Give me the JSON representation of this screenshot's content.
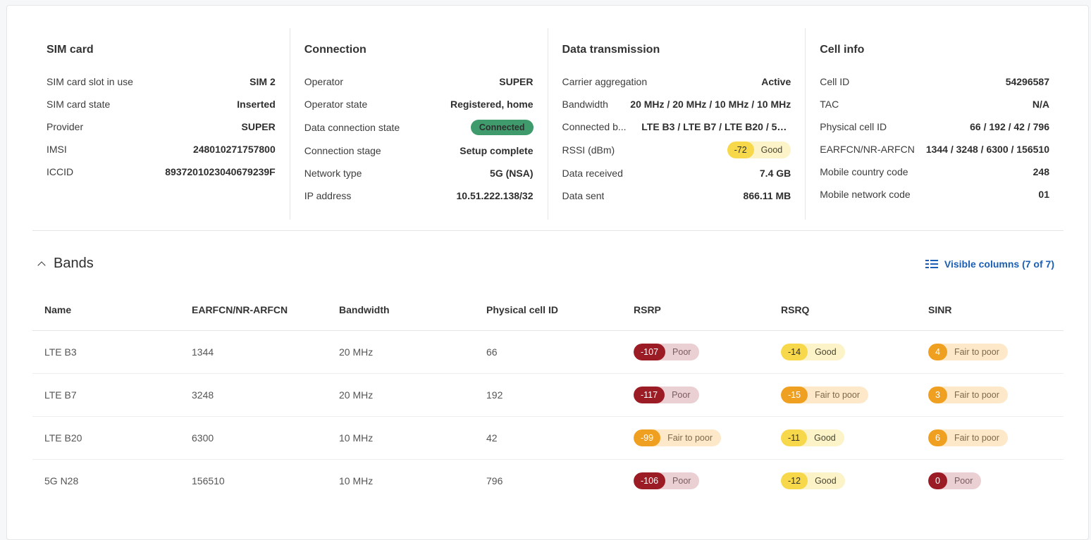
{
  "sim": {
    "title": "SIM card",
    "rows": [
      {
        "label": "SIM card slot in use",
        "value": "SIM 2"
      },
      {
        "label": "SIM card state",
        "value": "Inserted"
      },
      {
        "label": "Provider",
        "value": "SUPER"
      },
      {
        "label": "IMSI",
        "value": "248010271757800"
      },
      {
        "label": "ICCID",
        "value": "8937201023040679239F"
      }
    ]
  },
  "connection": {
    "title": "Connection",
    "rows": [
      {
        "label": "Operator",
        "value": "SUPER"
      },
      {
        "label": "Operator state",
        "value": "Registered, home"
      },
      {
        "label": "Data connection state",
        "value": "Connected"
      },
      {
        "label": "Connection stage",
        "value": "Setup complete"
      },
      {
        "label": "Network type",
        "value": "5G (NSA)"
      },
      {
        "label": "IP address",
        "value": "10.51.222.138/32"
      }
    ]
  },
  "data_tx": {
    "title": "Data transmission",
    "rows": [
      {
        "label": "Carrier aggregation",
        "value": "Active"
      },
      {
        "label": "Bandwidth",
        "value": "20 MHz / 20 MHz / 10 MHz / 10 MHz"
      },
      {
        "label": "Connected b...",
        "value": "LTE B3 / LTE B7 / LTE B20 / 5G..."
      },
      {
        "label": "RSSI (dBm)",
        "value": "-72",
        "quality": "Good"
      },
      {
        "label": "Data received",
        "value": "7.4 GB"
      },
      {
        "label": "Data sent",
        "value": "866.11 MB"
      }
    ]
  },
  "cell": {
    "title": "Cell info",
    "rows": [
      {
        "label": "Cell ID",
        "value": "54296587"
      },
      {
        "label": "TAC",
        "value": "N/A"
      },
      {
        "label": "Physical cell ID",
        "value": "66 / 192 / 42 / 796"
      },
      {
        "label": "EARFCN/NR-ARFCN",
        "value": "1344 / 3248 / 6300 / 156510"
      },
      {
        "label": "Mobile country code",
        "value": "248"
      },
      {
        "label": "Mobile network code",
        "value": "01"
      }
    ]
  },
  "bands": {
    "title": "Bands",
    "visible_columns": "Visible columns (7 of 7)",
    "headers": [
      "Name",
      "EARFCN/NR-ARFCN",
      "Bandwidth",
      "Physical cell ID",
      "RSRP",
      "RSRQ",
      "SINR"
    ],
    "rows": [
      {
        "name": "LTE B3",
        "earfcn": "1344",
        "bandwidth": "20 MHz",
        "pci": "66",
        "rsrp": {
          "v": "-107",
          "q": "Poor"
        },
        "rsrq": {
          "v": "-14",
          "q": "Good"
        },
        "sinr": {
          "v": "4",
          "q": "Fair to poor"
        }
      },
      {
        "name": "LTE B7",
        "earfcn": "3248",
        "bandwidth": "20 MHz",
        "pci": "192",
        "rsrp": {
          "v": "-117",
          "q": "Poor"
        },
        "rsrq": {
          "v": "-15",
          "q": "Fair to poor"
        },
        "sinr": {
          "v": "3",
          "q": "Fair to poor"
        }
      },
      {
        "name": "LTE B20",
        "earfcn": "6300",
        "bandwidth": "10 MHz",
        "pci": "42",
        "rsrp": {
          "v": "-99",
          "q": "Fair to poor"
        },
        "rsrq": {
          "v": "-11",
          "q": "Good"
        },
        "sinr": {
          "v": "6",
          "q": "Fair to poor"
        }
      },
      {
        "name": "5G N28",
        "earfcn": "156510",
        "bandwidth": "10 MHz",
        "pci": "796",
        "rsrp": {
          "v": "-106",
          "q": "Poor"
        },
        "rsrq": {
          "v": "-12",
          "q": "Good"
        },
        "sinr": {
          "v": "0",
          "q": "Poor"
        }
      }
    ]
  },
  "colors": {
    "poor": "#9b1c25",
    "fair": "#f0a021",
    "good": "#f7d84a",
    "connected": "#3f9b6b",
    "link": "#1a5fb4"
  }
}
